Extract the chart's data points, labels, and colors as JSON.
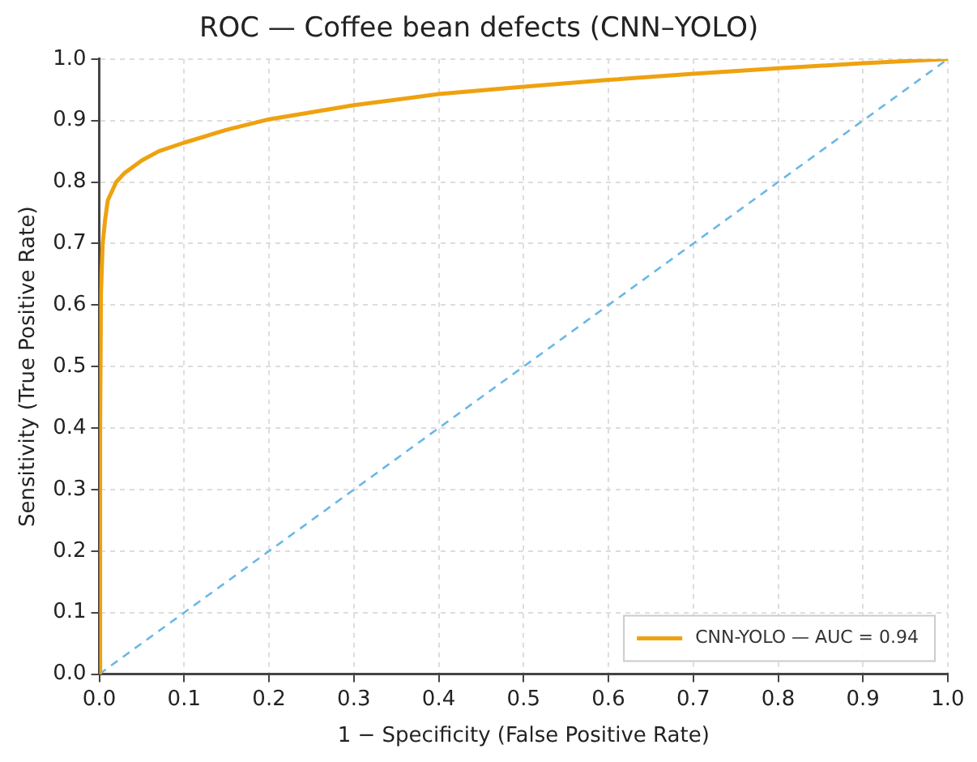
{
  "chart_data": {
    "type": "line",
    "title": "ROC — Coffee bean defects (CNN–YOLO)",
    "xlabel": "1 − Specificity (False Positive Rate)",
    "ylabel": "Sensitivity (True Positive Rate)",
    "series": [
      {
        "name": "CNN-YOLO — AUC = 0.94",
        "color": "#eea20f",
        "x": [
          0,
          0.001,
          0.002,
          0.004,
          0.007,
          0.01,
          0.02,
          0.03,
          0.05,
          0.07,
          0.1,
          0.15,
          0.2,
          0.3,
          0.4,
          0.5,
          0.6,
          0.7,
          0.8,
          0.9,
          1.0
        ],
        "values": [
          0,
          0.4,
          0.62,
          0.7,
          0.74,
          0.77,
          0.8,
          0.815,
          0.835,
          0.85,
          0.864,
          0.885,
          0.902,
          0.925,
          0.943,
          0.955,
          0.966,
          0.976,
          0.985,
          0.993,
          1.0
        ],
        "line_style": "solid"
      },
      {
        "color": "#6ab8e6",
        "x": [
          0,
          1
        ],
        "values": [
          0,
          1
        ],
        "line_style": "dashed"
      }
    ],
    "xlim": [
      0,
      1
    ],
    "ylim": [
      0,
      1
    ],
    "xticks": [
      {
        "value": 0,
        "label": "0.0"
      },
      0.1,
      0.2,
      0.3,
      0.4,
      0.5,
      0.6,
      0.7,
      0.8,
      0.9,
      {
        "value": 1,
        "label": "1.0"
      }
    ],
    "yticks": [
      {
        "value": 0,
        "label": "0.0"
      },
      0.1,
      0.2,
      0.3,
      0.4,
      0.5,
      0.6,
      0.7,
      0.8,
      0.9,
      {
        "value": 1,
        "label": "1.0"
      }
    ],
    "grid": true,
    "legend": "bottom right",
    "marker": "none"
  }
}
